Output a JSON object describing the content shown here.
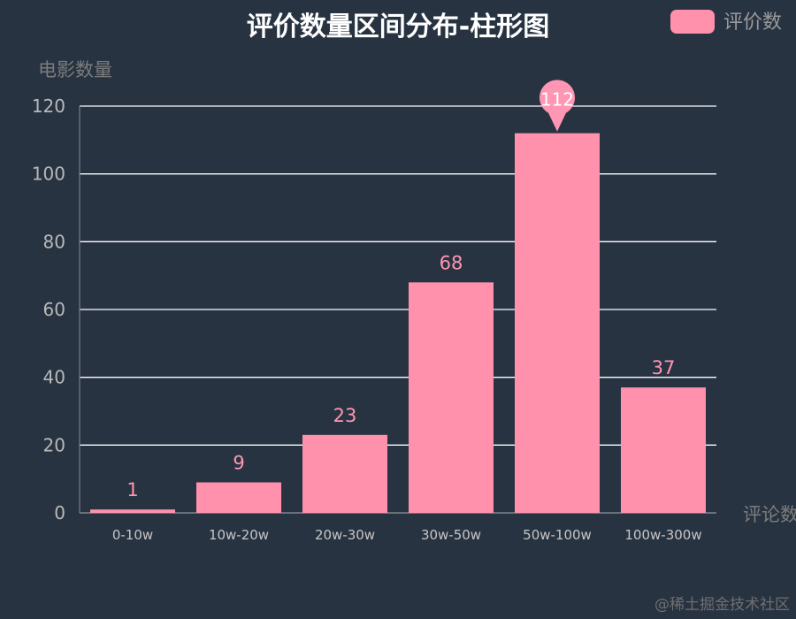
{
  "chart_data": {
    "type": "bar",
    "title": "评价数量区间分布-柱形图",
    "legend": {
      "label": "评价数",
      "position": "top-right"
    },
    "ylabel": "电影数量",
    "xlabel": "评论数",
    "categories": [
      "0-10w",
      "10w-20w",
      "20w-30w",
      "30w-50w",
      "50w-100w",
      "100w-300w"
    ],
    "series": [
      {
        "name": "评价数",
        "values": [
          1,
          9,
          23,
          68,
          112,
          37
        ]
      }
    ],
    "ylim": [
      0,
      120
    ],
    "yticks": [
      0,
      20,
      40,
      60,
      80,
      100,
      120
    ],
    "grid": true,
    "max_marker": {
      "category": "50w-100w",
      "value": 112
    },
    "colors": {
      "bar": "#ff91ad",
      "background": "#283342",
      "grid": "#ffffff"
    }
  },
  "watermark": "@稀土掘金技术社区"
}
